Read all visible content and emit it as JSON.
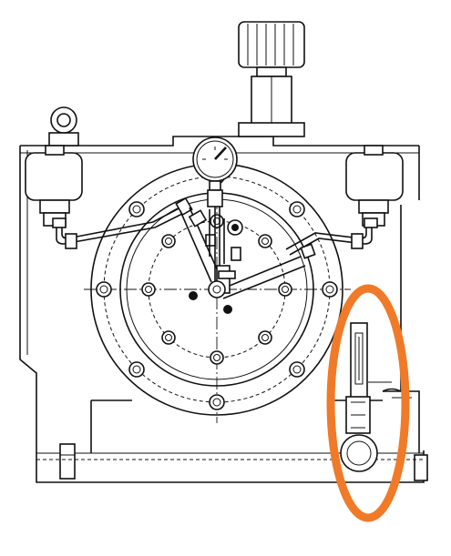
{
  "drawing": {
    "highlight_color": "#F07A28",
    "line_color": "#111111",
    "background_color": "#FFFFFF"
  },
  "parts": [
    {
      "name": "adjustment-knob-icon"
    },
    {
      "name": "pressure-gauge-icon"
    },
    {
      "name": "lifting-eye-icon"
    },
    {
      "name": "accumulator-left-icon"
    },
    {
      "name": "accumulator-right-icon"
    },
    {
      "name": "flange-bolt-circle-icon"
    },
    {
      "name": "sight-glass-level-gauge-icon"
    }
  ]
}
